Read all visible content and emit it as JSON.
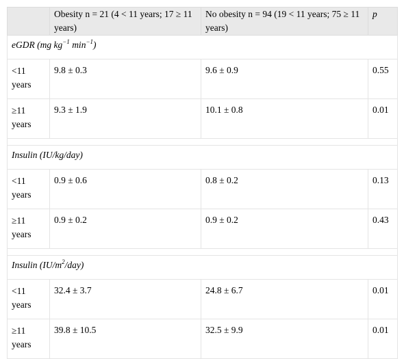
{
  "header": {
    "col1": "",
    "col2": "Obesity n = 21 (4 < 11 years; 17 ≥ 11 years)",
    "col3": "No obesity n = 94 (19 < 11 years; 75 ≥ 11 years)",
    "col4": "p"
  },
  "sections": [
    {
      "title_main": "eGDR (mg kg",
      "title_sup1": "−1",
      "title_mid": " min",
      "title_sup2": "−1",
      "title_end": ")",
      "rows": [
        {
          "age": "<11 years",
          "obesity": "9.8 ± 0.3",
          "no_obesity": "9.6 ± 0.9",
          "p": "0.55"
        },
        {
          "age": "≥11 years",
          "obesity": "9.3 ± 1.9",
          "no_obesity": "10.1 ± 0.8",
          "p": "0.01"
        }
      ]
    },
    {
      "title": "Insulin (IU/kg/day)",
      "rows": [
        {
          "age": "<11 years",
          "obesity": "0.9 ± 0.6",
          "no_obesity": "0.8 ± 0.2",
          "p": "0.13"
        },
        {
          "age": "≥11 years",
          "obesity": "0.9 ± 0.2",
          "no_obesity": "0.9 ± 0.2",
          "p": "0.43"
        }
      ]
    },
    {
      "title_main": "Insulin (IU/m",
      "title_sup": "2",
      "title_end": "/day)",
      "rows": [
        {
          "age": "<11 years",
          "obesity": "32.4 ± 3.7",
          "no_obesity": "24.8 ± 6.7",
          "p": "0.01"
        },
        {
          "age": "≥11 years",
          "obesity": "39.8 ± 10.5",
          "no_obesity": "32.5 ± 9.9",
          "p": "0.01"
        }
      ]
    }
  ]
}
